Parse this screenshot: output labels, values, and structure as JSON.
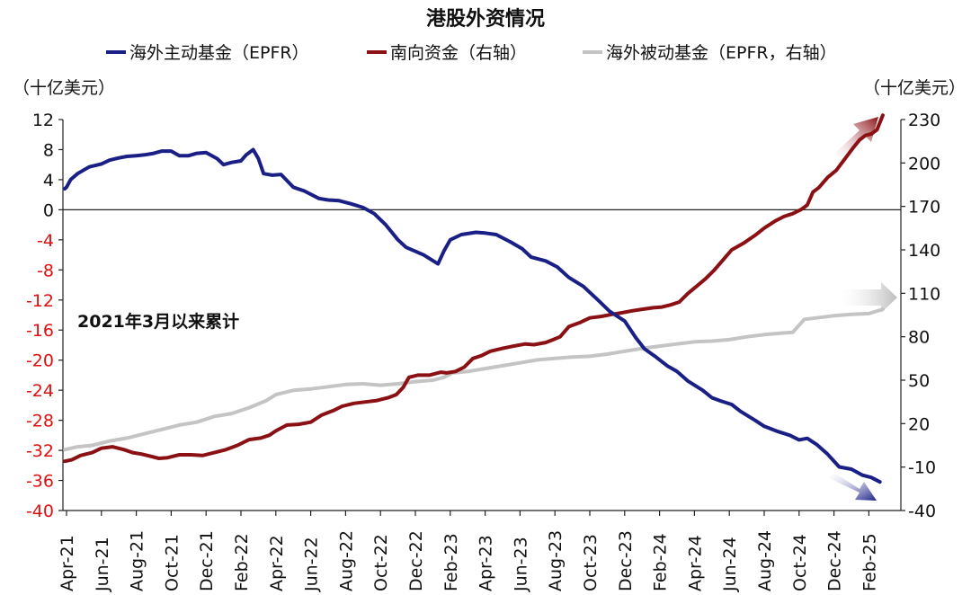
{
  "chart_data": {
    "type": "line",
    "title": "港股外资情况",
    "annotation": "2021年3月以来累计",
    "y_left_unit": "（十亿美元）",
    "y_right_unit": "（十亿美元）",
    "x_tick_labels": [
      "Apr-21",
      "Jun-21",
      "Aug-21",
      "Oct-21",
      "Dec-21",
      "Feb-22",
      "Apr-22",
      "Jun-22",
      "Aug-22",
      "Oct-22",
      "Dec-22",
      "Feb-23",
      "Apr-23",
      "Jun-23",
      "Aug-23",
      "Oct-23",
      "Dec-23",
      "Feb-24",
      "Apr-24",
      "Jun-24",
      "Aug-24",
      "Oct-24",
      "Dec-24",
      "Feb-25"
    ],
    "y_left_ticks": [
      12,
      8,
      4,
      0,
      -4,
      -8,
      -12,
      -16,
      -20,
      -24,
      -28,
      -32,
      -36,
      -40
    ],
    "y_left_ticks_text": [
      "12",
      "8",
      "4",
      "0",
      "-4",
      "-8",
      "-12",
      "-16",
      "-20",
      "-24",
      "-28",
      "-32",
      "-36",
      "-40"
    ],
    "y_right_ticks": [
      230,
      200,
      170,
      140,
      110,
      80,
      50,
      20,
      -10,
      -40
    ],
    "y_right_ticks_text": [
      "230",
      "200",
      "170",
      "140",
      "110",
      "80",
      "50",
      "20",
      "-10",
      "-40"
    ],
    "ylim_left": [
      -40,
      12
    ],
    "ylim_right": [
      -40,
      230
    ],
    "grid": false,
    "legend_position": "top",
    "colors": {
      "active": "#1a1f86",
      "southbound": "#8b1014",
      "passive": "#c4c4c4",
      "left_axis_text": "#e01010",
      "right_axis_text": "#111111"
    },
    "series": [
      {
        "name": "海外主动基金（EPFR）",
        "axis": "left",
        "color": "#1a1f86",
        "points": [
          [
            "2021-03-28",
            2.8
          ],
          [
            "2021-04-01",
            3.0
          ],
          [
            "2021-04-08",
            4.0
          ],
          [
            "2021-04-20",
            4.8
          ],
          [
            "2021-05-10",
            5.7
          ],
          [
            "2021-06-01",
            6.1
          ],
          [
            "2021-06-15",
            6.6
          ],
          [
            "2021-07-01",
            6.9
          ],
          [
            "2021-07-15",
            7.1
          ],
          [
            "2021-08-01",
            7.2
          ],
          [
            "2021-08-15",
            7.3
          ],
          [
            "2021-09-01",
            7.5
          ],
          [
            "2021-09-15",
            7.8
          ],
          [
            "2021-10-01",
            7.8
          ],
          [
            "2021-10-15",
            7.2
          ],
          [
            "2021-11-01",
            7.2
          ],
          [
            "2021-11-15",
            7.5
          ],
          [
            "2021-12-01",
            7.6
          ],
          [
            "2021-12-20",
            6.8
          ],
          [
            "2022-01-01",
            6.0
          ],
          [
            "2022-01-15",
            6.3
          ],
          [
            "2022-02-01",
            6.5
          ],
          [
            "2022-02-10",
            7.3
          ],
          [
            "2022-02-22",
            8.0
          ],
          [
            "2022-03-01",
            6.8
          ],
          [
            "2022-03-10",
            4.8
          ],
          [
            "2022-03-25",
            4.6
          ],
          [
            "2022-04-10",
            4.7
          ],
          [
            "2022-05-01",
            3.0
          ],
          [
            "2022-05-20",
            2.5
          ],
          [
            "2022-06-15",
            1.5
          ],
          [
            "2022-07-01",
            1.3
          ],
          [
            "2022-07-20",
            1.2
          ],
          [
            "2022-08-10",
            0.8
          ],
          [
            "2022-09-01",
            0.3
          ],
          [
            "2022-09-20",
            -0.5
          ],
          [
            "2022-10-10",
            -2.0
          ],
          [
            "2022-11-01",
            -4.0
          ],
          [
            "2022-11-15",
            -5.0
          ],
          [
            "2022-12-15",
            -6.0
          ],
          [
            "2023-01-10",
            -7.2
          ],
          [
            "2023-01-20",
            -5.5
          ],
          [
            "2023-02-01",
            -4.0
          ],
          [
            "2023-02-20",
            -3.3
          ],
          [
            "2023-03-15",
            -3.0
          ],
          [
            "2023-04-01",
            -3.1
          ],
          [
            "2023-04-20",
            -3.3
          ],
          [
            "2023-05-15",
            -4.3
          ],
          [
            "2023-06-05",
            -5.2
          ],
          [
            "2023-06-20",
            -6.3
          ],
          [
            "2023-07-15",
            -6.8
          ],
          [
            "2023-08-05",
            -7.6
          ],
          [
            "2023-08-25",
            -9.0
          ],
          [
            "2023-09-20",
            -10.2
          ],
          [
            "2023-10-15",
            -12.0
          ],
          [
            "2023-11-05",
            -13.5
          ],
          [
            "2023-12-01",
            -14.8
          ],
          [
            "2023-12-20",
            -17.0
          ],
          [
            "2024-01-05",
            -18.5
          ],
          [
            "2024-01-25",
            -19.6
          ],
          [
            "2024-02-15",
            -20.8
          ],
          [
            "2024-03-01",
            -21.5
          ],
          [
            "2024-03-20",
            -22.8
          ],
          [
            "2024-04-15",
            -24.0
          ],
          [
            "2024-05-01",
            -25.0
          ],
          [
            "2024-05-15",
            -25.4
          ],
          [
            "2024-06-05",
            -25.9
          ],
          [
            "2024-06-20",
            -26.8
          ],
          [
            "2024-07-15",
            -28.0
          ],
          [
            "2024-08-01",
            -28.8
          ],
          [
            "2024-08-25",
            -29.5
          ],
          [
            "2024-09-15",
            -30.0
          ],
          [
            "2024-10-01",
            -30.6
          ],
          [
            "2024-10-15",
            -30.4
          ],
          [
            "2024-11-01",
            -31.2
          ],
          [
            "2024-11-20",
            -32.5
          ],
          [
            "2024-12-10",
            -34.2
          ],
          [
            "2025-01-01",
            -34.5
          ],
          [
            "2025-01-20",
            -35.3
          ],
          [
            "2025-02-05",
            -35.6
          ],
          [
            "2025-02-20",
            -36.2
          ]
        ]
      },
      {
        "name": "南向资金（右轴）",
        "axis": "right",
        "color": "#8b1014",
        "points": [
          [
            "2021-03-28",
            -6.0
          ],
          [
            "2021-04-10",
            -5.0
          ],
          [
            "2021-04-25",
            -2.0
          ],
          [
            "2021-05-15",
            0.0
          ],
          [
            "2021-06-01",
            3.0
          ],
          [
            "2021-06-20",
            4.0
          ],
          [
            "2021-07-10",
            2.0
          ],
          [
            "2021-07-25",
            0.0
          ],
          [
            "2021-08-10",
            -1.0
          ],
          [
            "2021-08-25",
            -2.5
          ],
          [
            "2021-09-10",
            -4.0
          ],
          [
            "2021-09-25",
            -3.5
          ],
          [
            "2021-10-15",
            -1.5
          ],
          [
            "2021-11-05",
            -1.5
          ],
          [
            "2021-11-25",
            -2.0
          ],
          [
            "2021-12-15",
            0.0
          ],
          [
            "2022-01-05",
            2.0
          ],
          [
            "2022-01-25",
            5.0
          ],
          [
            "2022-02-15",
            9.0
          ],
          [
            "2022-03-05",
            10.0
          ],
          [
            "2022-03-20",
            12.0
          ],
          [
            "2022-04-01",
            15.0
          ],
          [
            "2022-04-20",
            19.0
          ],
          [
            "2022-05-10",
            19.5
          ],
          [
            "2022-06-01",
            21.0
          ],
          [
            "2022-06-20",
            26.0
          ],
          [
            "2022-07-10",
            29.0
          ],
          [
            "2022-07-25",
            32.0
          ],
          [
            "2022-08-15",
            34.0
          ],
          [
            "2022-09-05",
            35.0
          ],
          [
            "2022-09-25",
            36.0
          ],
          [
            "2022-10-15",
            38.0
          ],
          [
            "2022-10-28",
            40.0
          ],
          [
            "2022-11-10",
            45.0
          ],
          [
            "2022-11-20",
            52.0
          ],
          [
            "2022-12-05",
            53.5
          ],
          [
            "2022-12-25",
            53.5
          ],
          [
            "2023-01-15",
            55.5
          ],
          [
            "2023-01-25",
            55.0
          ],
          [
            "2023-02-10",
            56.0
          ],
          [
            "2023-02-25",
            59.0
          ],
          [
            "2023-03-10",
            65.0
          ],
          [
            "2023-03-25",
            67.0
          ],
          [
            "2023-04-10",
            70.0
          ],
          [
            "2023-05-01",
            72.0
          ],
          [
            "2023-05-20",
            73.5
          ],
          [
            "2023-06-10",
            75.0
          ],
          [
            "2023-06-25",
            74.5
          ],
          [
            "2023-07-15",
            76.0
          ],
          [
            "2023-07-28",
            78.0
          ],
          [
            "2023-08-10",
            80.0
          ],
          [
            "2023-08-25",
            87.0
          ],
          [
            "2023-09-15",
            90.0
          ],
          [
            "2023-10-01",
            93.0
          ],
          [
            "2023-10-20",
            94.0
          ],
          [
            "2023-11-10",
            95.5
          ],
          [
            "2023-11-25",
            96.5
          ],
          [
            "2023-12-15",
            98.0
          ],
          [
            "2024-01-01",
            99.0
          ],
          [
            "2024-01-20",
            100.0
          ],
          [
            "2024-02-05",
            100.5
          ],
          [
            "2024-02-20",
            102.0
          ],
          [
            "2024-03-05",
            104.0
          ],
          [
            "2024-03-20",
            110.0
          ],
          [
            "2024-04-05",
            115.0
          ],
          [
            "2024-04-20",
            120.0
          ],
          [
            "2024-05-05",
            126.0
          ],
          [
            "2024-05-20",
            133.0
          ],
          [
            "2024-06-05",
            140.0
          ],
          [
            "2024-06-25",
            144.5
          ],
          [
            "2024-07-15",
            150.0
          ],
          [
            "2024-08-01",
            155.0
          ],
          [
            "2024-08-20",
            160.0
          ],
          [
            "2024-09-05",
            163.0
          ],
          [
            "2024-09-20",
            165.0
          ],
          [
            "2024-10-05",
            168.0
          ],
          [
            "2024-10-15",
            171.0
          ],
          [
            "2024-10-25",
            180.0
          ],
          [
            "2024-11-05",
            183.0
          ],
          [
            "2024-11-20",
            190.0
          ],
          [
            "2024-12-05",
            195.0
          ],
          [
            "2024-12-20",
            203.0
          ],
          [
            "2025-01-05",
            211.0
          ],
          [
            "2025-01-15",
            216.0
          ],
          [
            "2025-01-25",
            219.0
          ],
          [
            "2025-02-05",
            220.0
          ],
          [
            "2025-02-15",
            223.0
          ],
          [
            "2025-02-25",
            233.0
          ]
        ]
      },
      {
        "name": "海外被动基金（EPFR，右轴）",
        "axis": "right",
        "color": "#c4c4c4",
        "points": [
          [
            "2021-03-28",
            2.0
          ],
          [
            "2021-04-20",
            4.0
          ],
          [
            "2021-05-15",
            5.0
          ],
          [
            "2021-06-15",
            8.0
          ],
          [
            "2021-07-15",
            10.0
          ],
          [
            "2021-08-15",
            13.0
          ],
          [
            "2021-09-15",
            16.0
          ],
          [
            "2021-10-15",
            19.0
          ],
          [
            "2021-11-15",
            21.0
          ],
          [
            "2021-12-15",
            25.0
          ],
          [
            "2022-01-15",
            27.0
          ],
          [
            "2022-02-15",
            31.0
          ],
          [
            "2022-03-15",
            36.0
          ],
          [
            "2022-04-01",
            40.0
          ],
          [
            "2022-05-01",
            43.0
          ],
          [
            "2022-06-01",
            44.0
          ],
          [
            "2022-07-01",
            45.5
          ],
          [
            "2022-08-01",
            47.0
          ],
          [
            "2022-09-01",
            47.5
          ],
          [
            "2022-10-01",
            46.5
          ],
          [
            "2022-11-01",
            47.5
          ],
          [
            "2022-12-01",
            49.0
          ],
          [
            "2023-01-01",
            50.0
          ],
          [
            "2023-01-20",
            52.0
          ],
          [
            "2023-02-05",
            55.0
          ],
          [
            "2023-03-01",
            56.0
          ],
          [
            "2023-04-01",
            58.0
          ],
          [
            "2023-05-01",
            60.0
          ],
          [
            "2023-06-01",
            62.0
          ],
          [
            "2023-07-01",
            64.0
          ],
          [
            "2023-08-01",
            65.0
          ],
          [
            "2023-09-01",
            66.0
          ],
          [
            "2023-10-01",
            66.5
          ],
          [
            "2023-11-01",
            68.0
          ],
          [
            "2023-12-01",
            70.0
          ],
          [
            "2024-01-01",
            72.0
          ],
          [
            "2024-02-01",
            73.5
          ],
          [
            "2024-03-01",
            75.0
          ],
          [
            "2024-04-01",
            76.5
          ],
          [
            "2024-05-01",
            77.0
          ],
          [
            "2024-06-01",
            78.0
          ],
          [
            "2024-07-01",
            80.0
          ],
          [
            "2024-08-01",
            81.5
          ],
          [
            "2024-09-01",
            82.5
          ],
          [
            "2024-09-20",
            83.0
          ],
          [
            "2024-10-01",
            88.0
          ],
          [
            "2024-10-10",
            92.0
          ],
          [
            "2024-11-01",
            93.0
          ],
          [
            "2024-12-01",
            94.5
          ],
          [
            "2025-01-01",
            95.5
          ],
          [
            "2025-02-01",
            96.0
          ],
          [
            "2025-02-25",
            99.0
          ]
        ]
      }
    ]
  }
}
